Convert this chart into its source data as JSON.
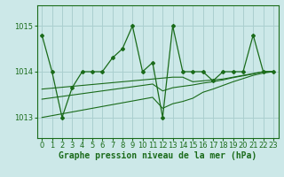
{
  "xlabel": "Graphe pression niveau de la mer (hPa)",
  "bg_color": "#cce8e8",
  "grid_color": "#aacfcf",
  "line_color": "#1a6b1a",
  "x_ticks": [
    0,
    1,
    2,
    3,
    4,
    5,
    6,
    7,
    8,
    9,
    10,
    11,
    12,
    13,
    14,
    15,
    16,
    17,
    18,
    19,
    20,
    21,
    22,
    23
  ],
  "y_ticks": [
    1013,
    1014,
    1015
  ],
  "ylim": [
    1012.55,
    1015.45
  ],
  "xlim": [
    -0.5,
    23.5
  ],
  "main_series": [
    1014.8,
    1014.0,
    1013.0,
    1013.65,
    1014.0,
    1014.0,
    1014.0,
    1014.3,
    1014.5,
    1015.0,
    1014.0,
    1014.2,
    1013.0,
    1015.0,
    1014.0,
    1014.0,
    1014.0,
    1013.8,
    1014.0,
    1014.0,
    1014.0,
    1014.8,
    1014.0,
    1014.0
  ],
  "trend1": [
    1013.62,
    1013.64,
    1013.66,
    1013.68,
    1013.7,
    1013.72,
    1013.74,
    1013.76,
    1013.78,
    1013.8,
    1013.82,
    1013.84,
    1013.86,
    1013.88,
    1013.88,
    1013.78,
    1013.8,
    1013.82,
    1013.84,
    1013.88,
    1013.92,
    1013.96,
    1014.0,
    1014.0
  ],
  "trend2": [
    1013.4,
    1013.43,
    1013.46,
    1013.49,
    1013.52,
    1013.55,
    1013.58,
    1013.61,
    1013.64,
    1013.67,
    1013.7,
    1013.73,
    1013.58,
    1013.65,
    1013.68,
    1013.71,
    1013.75,
    1013.78,
    1013.82,
    1013.87,
    1013.91,
    1013.95,
    1014.0,
    1014.0
  ],
  "trend3": [
    1013.0,
    1013.04,
    1013.08,
    1013.12,
    1013.16,
    1013.2,
    1013.24,
    1013.28,
    1013.32,
    1013.36,
    1013.4,
    1013.44,
    1013.2,
    1013.3,
    1013.35,
    1013.42,
    1013.55,
    1013.62,
    1013.7,
    1013.78,
    1013.85,
    1013.92,
    1013.97,
    1014.0
  ],
  "xlabel_fontsize": 7,
  "tick_fontsize": 6
}
